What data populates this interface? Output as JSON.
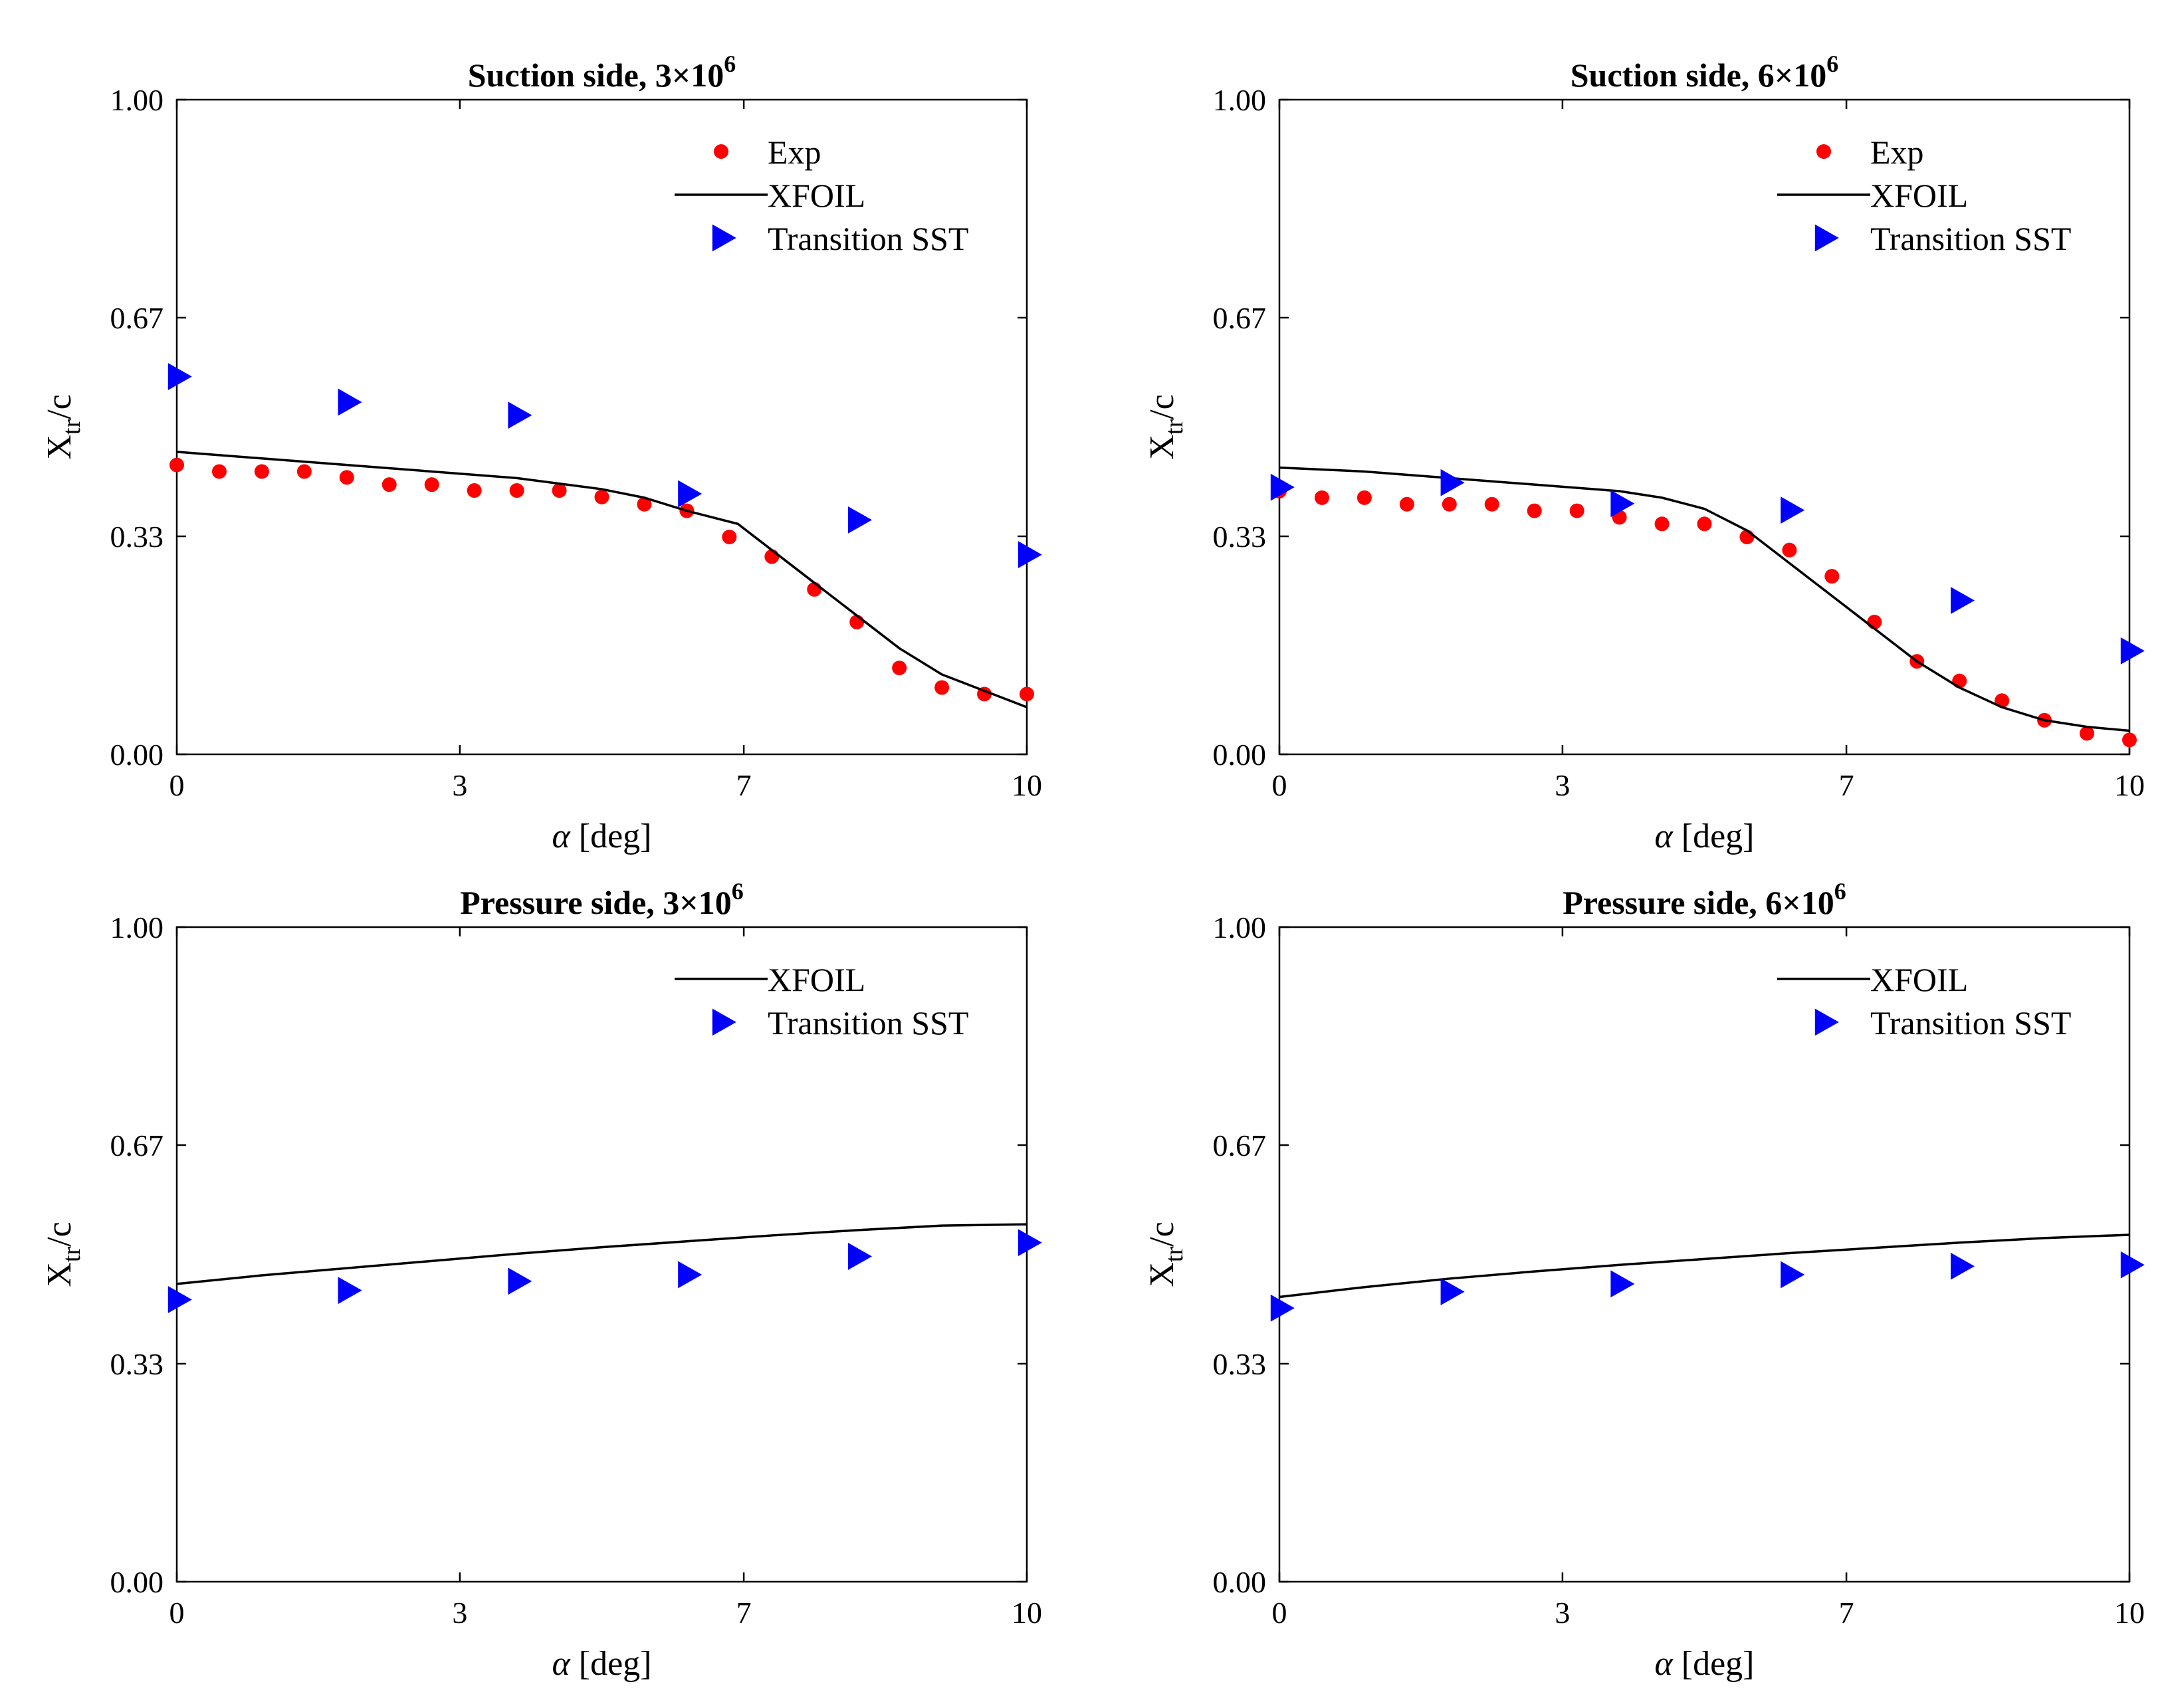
{
  "figure": {
    "background": "#ffffff"
  },
  "colors": {
    "exp": "#ff0000",
    "xfoil": "#000000",
    "sst": "#0000ff"
  },
  "chart_data": [
    {
      "type": "line",
      "title": "Suction side, 3×10",
      "title_exp": "6",
      "xlabel_symbol": "α",
      "xlabel": "[deg]",
      "ylabel_main": "X",
      "ylabel_sub": "tr",
      "ylabel_tail": "/c",
      "xlim": [
        0,
        10
      ],
      "ylim": [
        0,
        1
      ],
      "xticks": [
        0,
        3.33,
        6.67,
        10
      ],
      "xtick_labels": [
        "0",
        "3",
        "7",
        "10"
      ],
      "yticks": [
        0,
        0.333,
        0.667,
        1
      ],
      "ytick_labels": [
        "0.00",
        "0.33",
        "0.67",
        "1.00"
      ],
      "legend": [
        "Exp",
        "XFOIL",
        "Transition SST"
      ],
      "series": [
        {
          "name": "Exp",
          "kind": "dots",
          "x": [
            0,
            0.5,
            1,
            1.5,
            2,
            2.5,
            3,
            3.5,
            4,
            4.5,
            5,
            5.5,
            6,
            6.5,
            7,
            7.5,
            8,
            8.5,
            9,
            9.5,
            10
          ],
          "y": [
            0.442,
            0.432,
            0.432,
            0.432,
            0.423,
            0.412,
            0.412,
            0.403,
            0.403,
            0.403,
            0.393,
            0.382,
            0.372,
            0.332,
            0.302,
            0.252,
            0.202,
            0.132,
            0.102,
            0.092,
            0.092
          ]
        },
        {
          "name": "XFOIL",
          "kind": "line",
          "x": [
            0,
            1,
            2,
            3,
            4,
            5,
            5.5,
            6,
            6.6,
            7,
            7.5,
            8,
            8.5,
            9,
            9.5,
            10
          ],
          "y": [
            0.462,
            0.452,
            0.442,
            0.432,
            0.422,
            0.405,
            0.392,
            0.372,
            0.352,
            0.312,
            0.262,
            0.212,
            0.162,
            0.122,
            0.097,
            0.072
          ]
        },
        {
          "name": "Transition SST",
          "kind": "triangles",
          "x": [
            0,
            2,
            4,
            6,
            8,
            10
          ],
          "y": [
            0.577,
            0.538,
            0.518,
            0.398,
            0.358,
            0.305
          ]
        }
      ]
    },
    {
      "type": "line",
      "title": "Suction side, 6×10",
      "title_exp": "6",
      "xlabel_symbol": "α",
      "xlabel": "[deg]",
      "ylabel_main": "X",
      "ylabel_sub": "tr",
      "ylabel_tail": "/c",
      "xlim": [
        0,
        10
      ],
      "ylim": [
        0,
        1
      ],
      "xticks": [
        0,
        3.33,
        6.67,
        10
      ],
      "xtick_labels": [
        "0",
        "3",
        "7",
        "10"
      ],
      "yticks": [
        0,
        0.333,
        0.667,
        1
      ],
      "ytick_labels": [
        "0.00",
        "0.33",
        "0.67",
        "1.00"
      ],
      "legend": [
        "Exp",
        "XFOIL",
        "Transition SST"
      ],
      "series": [
        {
          "name": "Exp",
          "kind": "dots",
          "x": [
            0,
            0.5,
            1,
            1.5,
            2,
            2.5,
            3,
            3.5,
            4,
            4.5,
            5,
            5.5,
            6,
            6.5,
            7,
            7.5,
            8,
            8.5,
            9,
            9.5,
            10
          ],
          "y": [
            0.402,
            0.392,
            0.392,
            0.382,
            0.382,
            0.382,
            0.372,
            0.372,
            0.362,
            0.352,
            0.352,
            0.332,
            0.312,
            0.272,
            0.202,
            0.142,
            0.112,
            0.082,
            0.052,
            0.032,
            0.022
          ]
        },
        {
          "name": "XFOIL",
          "kind": "line",
          "x": [
            0,
            1,
            2,
            3,
            4,
            4.5,
            5,
            5.5,
            6,
            6.5,
            7,
            7.5,
            8,
            8.5,
            9,
            9.5,
            10
          ],
          "y": [
            0.438,
            0.432,
            0.422,
            0.412,
            0.402,
            0.392,
            0.375,
            0.342,
            0.292,
            0.242,
            0.192,
            0.142,
            0.102,
            0.072,
            0.052,
            0.042,
            0.036
          ]
        },
        {
          "name": "Transition SST",
          "kind": "triangles",
          "x": [
            0,
            2,
            4,
            6,
            8,
            10
          ],
          "y": [
            0.408,
            0.415,
            0.383,
            0.373,
            0.235,
            0.158
          ]
        }
      ]
    },
    {
      "type": "line",
      "title": "Pressure side, 3×10",
      "title_exp": "6",
      "xlabel_symbol": "α",
      "xlabel": "[deg]",
      "ylabel_main": "X",
      "ylabel_sub": "tr",
      "ylabel_tail": "/c",
      "xlim": [
        0,
        10
      ],
      "ylim": [
        0,
        1
      ],
      "xticks": [
        0,
        3.33,
        6.67,
        10
      ],
      "xtick_labels": [
        "0",
        "3",
        "7",
        "10"
      ],
      "yticks": [
        0,
        0.333,
        0.667,
        1
      ],
      "ytick_labels": [
        "0.00",
        "0.33",
        "0.67",
        "1.00"
      ],
      "legend": [
        "XFOIL",
        "Transition SST"
      ],
      "series": [
        {
          "name": "XFOIL",
          "kind": "line",
          "x": [
            0,
            1,
            2,
            3,
            4,
            5,
            6,
            7,
            8,
            9,
            10
          ],
          "y": [
            0.455,
            0.468,
            0.479,
            0.49,
            0.501,
            0.511,
            0.52,
            0.529,
            0.537,
            0.544,
            0.546
          ]
        },
        {
          "name": "Transition SST",
          "kind": "triangles",
          "x": [
            0,
            2,
            4,
            6,
            8,
            10
          ],
          "y": [
            0.431,
            0.445,
            0.459,
            0.469,
            0.497,
            0.518
          ]
        }
      ]
    },
    {
      "type": "line",
      "title": "Pressure side, 6×10",
      "title_exp": "6",
      "xlabel_symbol": "α",
      "xlabel": "[deg]",
      "ylabel_main": "X",
      "ylabel_sub": "tr",
      "ylabel_tail": "/c",
      "xlim": [
        0,
        10
      ],
      "ylim": [
        0,
        1
      ],
      "xticks": [
        0,
        3.33,
        6.67,
        10
      ],
      "xtick_labels": [
        "0",
        "3",
        "7",
        "10"
      ],
      "yticks": [
        0,
        0.333,
        0.667,
        1
      ],
      "ytick_labels": [
        "0.00",
        "0.33",
        "0.67",
        "1.00"
      ],
      "legend": [
        "XFOIL",
        "Transition SST"
      ],
      "series": [
        {
          "name": "XFOIL",
          "kind": "line",
          "x": [
            0,
            1,
            2,
            3,
            4,
            5,
            6,
            7,
            8,
            9,
            10
          ],
          "y": [
            0.435,
            0.45,
            0.463,
            0.474,
            0.484,
            0.493,
            0.502,
            0.51,
            0.518,
            0.525,
            0.53
          ]
        },
        {
          "name": "Transition SST",
          "kind": "triangles",
          "x": [
            0,
            2,
            4,
            6,
            8,
            10
          ],
          "y": [
            0.418,
            0.443,
            0.455,
            0.469,
            0.482,
            0.484
          ]
        }
      ]
    }
  ]
}
